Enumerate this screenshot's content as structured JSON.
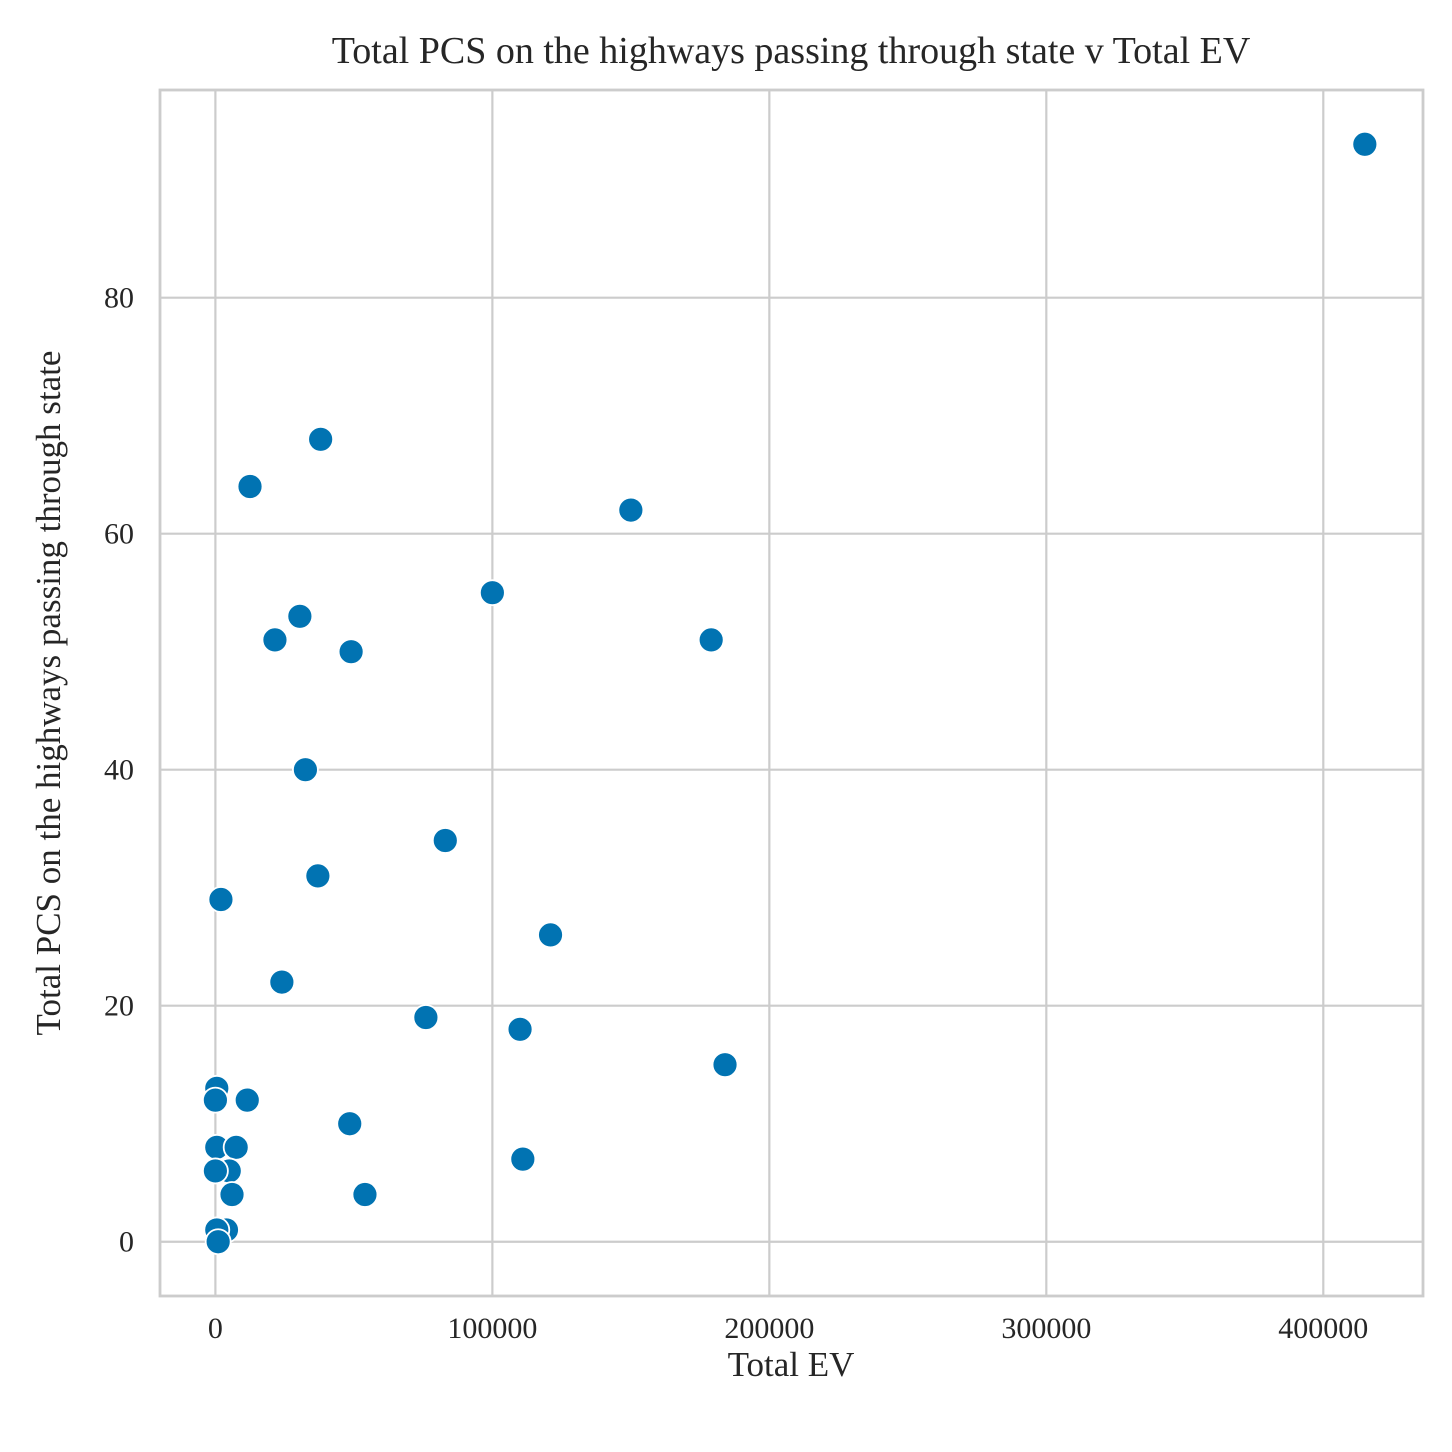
{
  "chart_data": {
    "type": "scatter",
    "title": "Total PCS on the highways passing through state v Total EV",
    "xlabel": "Total EV",
    "ylabel": "Total PCS on the highways passing through state",
    "xlim": [
      -20000,
      436000
    ],
    "ylim": [
      -4.6,
      97.6
    ],
    "xticks": [
      0,
      100000,
      200000,
      300000,
      400000
    ],
    "xtick_labels": [
      "0",
      "100000",
      "200000",
      "300000",
      "400000"
    ],
    "yticks": [
      0,
      20,
      40,
      60,
      80
    ],
    "ytick_labels": [
      "0",
      "20",
      "40",
      "60",
      "80"
    ],
    "grid": true,
    "legend": "none",
    "marker_color": "#0173b2",
    "points": [
      {
        "x": 415000,
        "y": 93
      },
      {
        "x": 38000,
        "y": 68
      },
      {
        "x": 12500,
        "y": 64
      },
      {
        "x": 150000,
        "y": 62
      },
      {
        "x": 100000,
        "y": 55
      },
      {
        "x": 30500,
        "y": 53
      },
      {
        "x": 21500,
        "y": 51
      },
      {
        "x": 179000,
        "y": 51
      },
      {
        "x": 49000,
        "y": 50
      },
      {
        "x": 32500,
        "y": 40
      },
      {
        "x": 83000,
        "y": 34
      },
      {
        "x": 37000,
        "y": 31
      },
      {
        "x": 2000,
        "y": 29
      },
      {
        "x": 121000,
        "y": 26
      },
      {
        "x": 24000,
        "y": 22
      },
      {
        "x": 76000,
        "y": 19
      },
      {
        "x": 110000,
        "y": 18
      },
      {
        "x": 184000,
        "y": 15
      },
      {
        "x": 500,
        "y": 13
      },
      {
        "x": 0,
        "y": 12
      },
      {
        "x": 11500,
        "y": 12
      },
      {
        "x": 48500,
        "y": 10
      },
      {
        "x": 500,
        "y": 8
      },
      {
        "x": 7500,
        "y": 8
      },
      {
        "x": 111000,
        "y": 7
      },
      {
        "x": 5000,
        "y": 6
      },
      {
        "x": 0,
        "y": 6
      },
      {
        "x": 6000,
        "y": 4
      },
      {
        "x": 54000,
        "y": 4
      },
      {
        "x": 4000,
        "y": 1
      },
      {
        "x": 500,
        "y": 1
      },
      {
        "x": 1000,
        "y": 0
      }
    ]
  }
}
